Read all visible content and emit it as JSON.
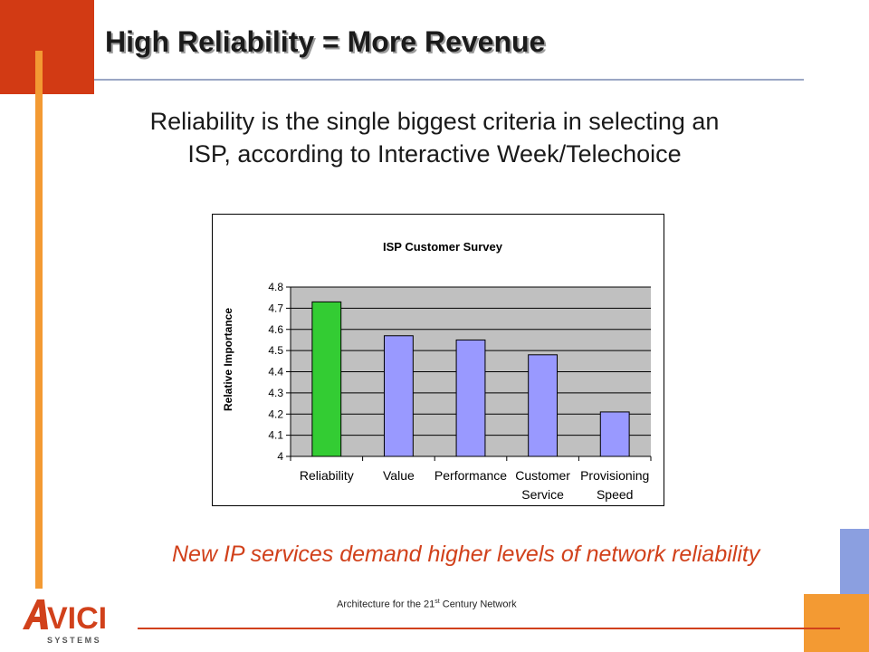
{
  "slide": {
    "title": "High Reliability = More Revenue",
    "subtitle_line1": "Reliability is the single biggest criteria in selecting an",
    "subtitle_line2": "ISP, according to Interactive Week/Telechoice",
    "tagline": "New IP services demand higher levels of network reliability",
    "footer_pre": "Architecture for the 21",
    "footer_sup": "st",
    "footer_post": " Century Network"
  },
  "logo": {
    "wordmark": "VICI",
    "subtext": "S Y S T E M S",
    "brand_color": "#d1411b"
  },
  "colors": {
    "accent_red": "#d23a14",
    "accent_orange": "#f39a33",
    "accent_blue": "#8b9fe0",
    "text_orange": "#d1411b",
    "bar_green": "#33cc33",
    "bar_blue": "#9999ff",
    "plot_bg": "#c0c0c0"
  },
  "chart_data": {
    "type": "bar",
    "title": "ISP Customer  Survey",
    "ylabel": "Relative Importance",
    "xlabel": "",
    "categories": [
      "Reliability",
      "Value",
      "Performance",
      "Customer Service",
      "Provisioning Speed"
    ],
    "category_lines": [
      [
        "Reliability"
      ],
      [
        "Value"
      ],
      [
        "Performance"
      ],
      [
        "Customer",
        "Service"
      ],
      [
        "Provisioning",
        "Speed"
      ]
    ],
    "values": [
      4.73,
      4.57,
      4.55,
      4.48,
      4.21
    ],
    "bar_colors": [
      "#33cc33",
      "#9999ff",
      "#9999ff",
      "#9999ff",
      "#9999ff"
    ],
    "ylim": [
      4,
      4.8
    ],
    "yticks": [
      "4",
      "4.1",
      "4.2",
      "4.3",
      "4.4",
      "4.5",
      "4.6",
      "4.7",
      "4.8"
    ],
    "grid": true,
    "legend": "none"
  }
}
